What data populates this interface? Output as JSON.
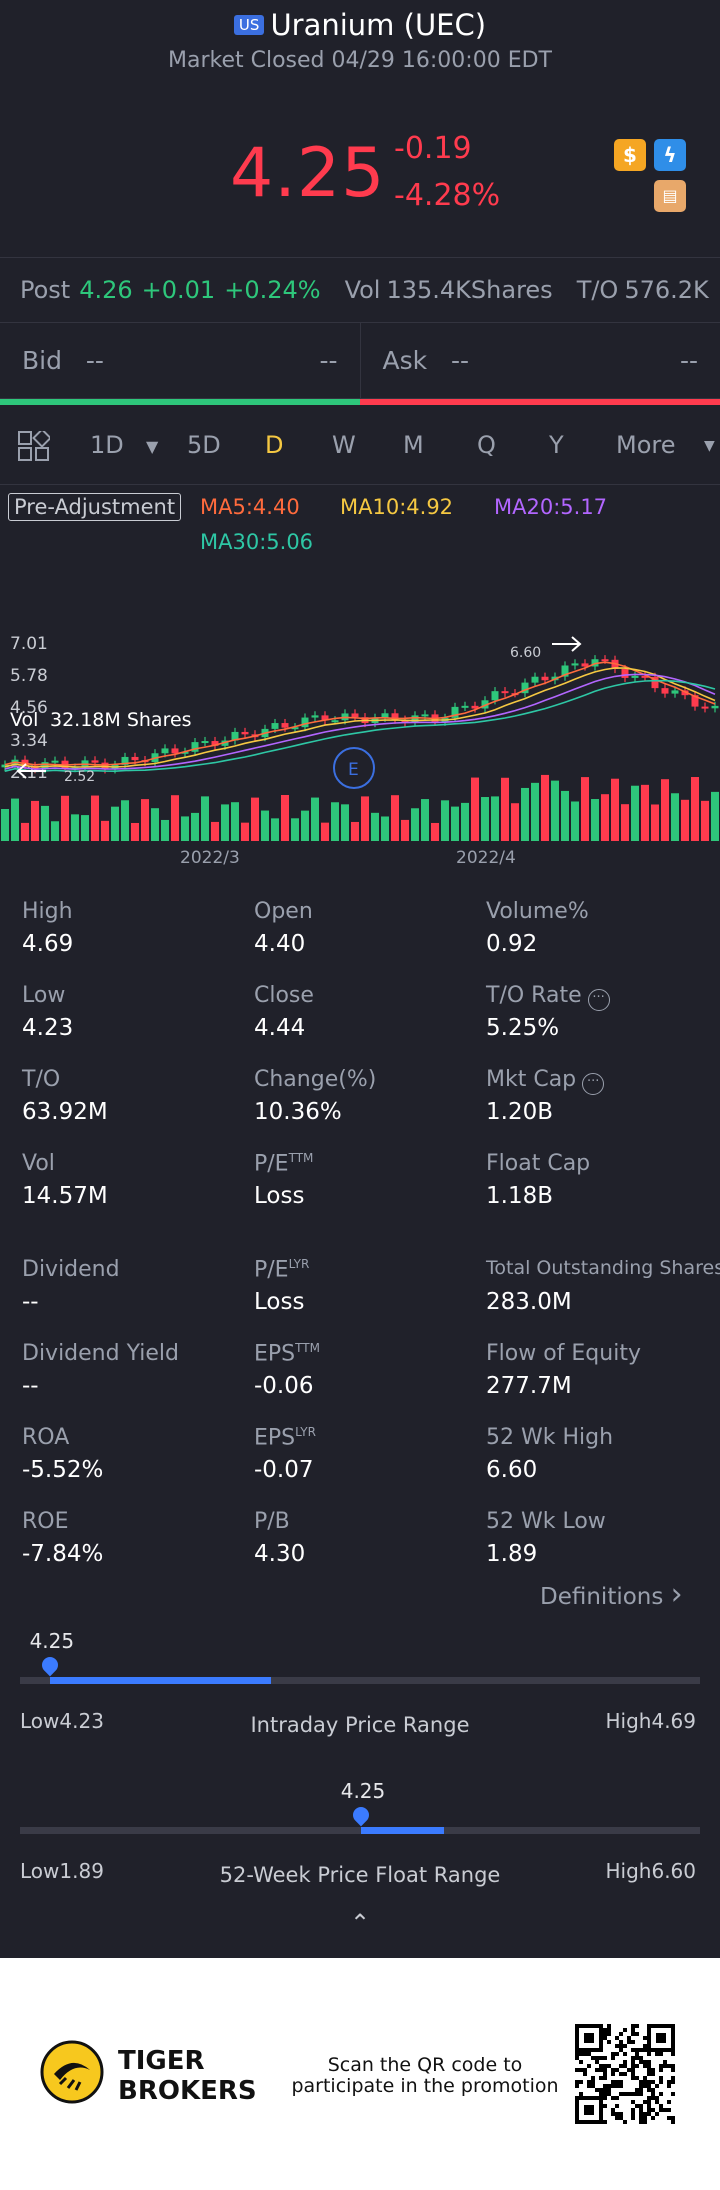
{
  "header": {
    "market_badge": "US",
    "title": "Uranium (UEC)",
    "status": "Market Closed 04/29 16:00:00 EDT",
    "price": "4.25",
    "change": "-0.19",
    "change_pct": "-4.28%"
  },
  "post": {
    "label": "Post",
    "price": "4.26",
    "change": "+0.01",
    "change_pct": "+0.24%",
    "vol_label": "Vol",
    "vol_value": "135.4KShares",
    "to_label": "T/O",
    "to_value": "576.2K"
  },
  "bidask": {
    "bid_label": "Bid",
    "bid_qty": "--",
    "bid_val": "--",
    "ask_label": "Ask",
    "ask_qty": "--",
    "ask_val": "--"
  },
  "tabs": {
    "items": [
      "1D",
      "5D",
      "D",
      "W",
      "M",
      "Q",
      "Y",
      "More"
    ],
    "active": "D"
  },
  "ma": {
    "adjust": "Pre-Adjustment",
    "ma5": "MA5:4.40",
    "ma10": "MA10:4.92",
    "ma20": "MA20:5.17",
    "ma30": "MA30:5.06",
    "colors": {
      "ma5": "#ff6b3d",
      "ma10": "#f5c842",
      "ma20": "#b266ff",
      "ma30": "#2ec7a5"
    }
  },
  "chart": {
    "y_ticks": [
      "7.01",
      "5.78",
      "4.56",
      "3.34",
      "2.11"
    ],
    "max_label": "6.60",
    "min_label": "2.52",
    "event_label": "E",
    "vol_label": "Vol",
    "vol_value": "32.18M Shares",
    "x_labels": [
      "2022/3",
      "2022/4"
    ]
  },
  "stats": [
    {
      "label": "High",
      "value": "4.69"
    },
    {
      "label": "Open",
      "value": "4.40"
    },
    {
      "label": "Volume%",
      "value": "0.92"
    },
    {
      "label": "Low",
      "value": "4.23"
    },
    {
      "label": "Close",
      "value": "4.44"
    },
    {
      "label": "T/O Rate",
      "value": "5.25%"
    },
    {
      "label": "T/O",
      "value": "63.92M"
    },
    {
      "label": "Change(%)",
      "value": "10.36%"
    },
    {
      "label": "Mkt Cap",
      "value": "1.20B"
    },
    {
      "label": "Vol",
      "value": "14.57M"
    },
    {
      "label": "P/E",
      "sup": "TTM",
      "value": "Loss"
    },
    {
      "label": "Float Cap",
      "value": "1.18B"
    },
    {
      "label": "Dividend",
      "value": "--"
    },
    {
      "label": "P/E",
      "sup": "LYR",
      "value": "Loss"
    },
    {
      "label": "Total Outstanding Shares",
      "value": "283.0M"
    },
    {
      "label": "Dividend Yield",
      "value": "--"
    },
    {
      "label": "EPS",
      "sup": "TTM",
      "value": "-0.06"
    },
    {
      "label": "Flow of Equity",
      "value": "277.7M"
    },
    {
      "label": "ROA",
      "value": "-5.52%"
    },
    {
      "label": "EPS",
      "sup": "LYR",
      "value": "-0.07"
    },
    {
      "label": "52 Wk High",
      "value": "6.60"
    },
    {
      "label": "ROE",
      "value": "-7.84%"
    },
    {
      "label": "P/B",
      "value": "4.30"
    },
    {
      "label": "52 Wk Low",
      "value": "1.89"
    }
  ],
  "definitions_label": "Definitions",
  "intraday": {
    "current": "4.25",
    "low_label": "Low4.23",
    "high_label": "High4.69",
    "title": "Intraday Price Range",
    "low": 4.23,
    "high": 4.69,
    "open": 4.4,
    "price": 4.25
  },
  "week52": {
    "current": "4.25",
    "low_label": "Low1.89",
    "high_label": "High6.60",
    "title": "52-Week Price Float Range",
    "low": 1.89,
    "high": 6.6,
    "price": 4.25
  },
  "footer": {
    "brand_line1": "TIGER",
    "brand_line2": "BROKERS",
    "promo_line1": "Scan the QR code to",
    "promo_line2": "participate in the promotion"
  }
}
